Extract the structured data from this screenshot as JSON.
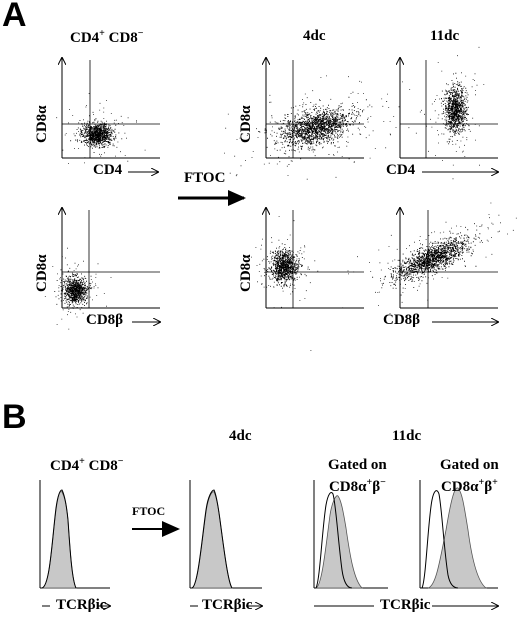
{
  "panel_a": {
    "letter": "A",
    "col_left": "CD4",
    "col_left_sup1": "+",
    "col_left_b": " CD8",
    "col_left_sup2": "−",
    "col_mid": "4dc",
    "col_right": "11dc",
    "y_top": "CD8α",
    "x_top_left": "CD4",
    "x_top_right": "CD4",
    "y_bottom": "CD8α",
    "x_bottom_left": "CD8β",
    "x_bottom_right": "CD8β",
    "ftoc": "FTOC"
  },
  "panel_b": {
    "letter": "B",
    "col_left": "CD4",
    "col_left_sup1": "+",
    "col_left_b": " CD8",
    "col_left_sup2": "−",
    "col_mid": "4dc",
    "col_right": "11dc",
    "gate1_l1": "Gated on",
    "gate1_l2": "CD8α",
    "gate1_sup1": "+",
    "gate1_b": "β",
    "gate1_sup2": "−",
    "gate2_l1": "Gated on",
    "gate2_l2": "CD8α",
    "gate2_sup1": "+",
    "gate2_b": "β",
    "gate2_sup2": "+",
    "ftoc": "FTOC",
    "xlabel": "TCRβic"
  }
}
